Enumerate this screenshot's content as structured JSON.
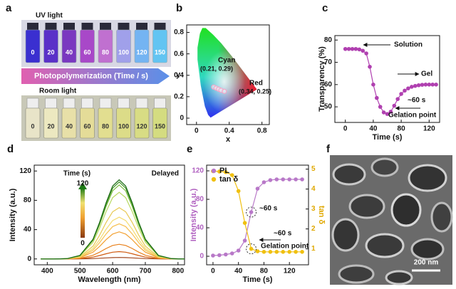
{
  "photo_a": {
    "label": "a",
    "uv_title": "UV light",
    "room_title": "Room light",
    "arrow_text": "Photopolymerization (Time / s)",
    "vial_labels": [
      0,
      20,
      40,
      60,
      80,
      100,
      120,
      150
    ]
  },
  "chart_data": [
    {
      "type": "scatter",
      "label": "b",
      "xlabel": "x",
      "ylabel": "y",
      "xlim": [
        -0.12,
        0.89
      ],
      "ylim": [
        -0.06,
        0.87
      ],
      "xticks": [
        0,
        0.4,
        0.8
      ],
      "yticks": [
        0,
        0.2,
        0.4,
        0.6,
        0.8
      ],
      "x": [
        0.21,
        0.24,
        0.27,
        0.3,
        0.34
      ],
      "values": [
        0.29,
        0.28,
        0.27,
        0.26,
        0.25
      ],
      "color": "#f4a6c8",
      "annotations": [
        "Cyan",
        "(0.21, 0.29)",
        "Red",
        "(0.34, 0.25)"
      ]
    },
    {
      "type": "line",
      "label": "c",
      "xlabel": "Time (s)",
      "ylabel": "Transparency (%)",
      "xlim": [
        -15,
        135
      ],
      "ylim": [
        43,
        82
      ],
      "xticks": [
        0,
        40,
        80,
        120
      ],
      "yticks": [
        50,
        60,
        70,
        80
      ],
      "markers": true,
      "x": [
        0,
        5,
        10,
        15,
        20,
        25,
        30,
        35,
        40,
        45,
        50,
        55,
        60,
        65,
        70,
        75,
        80,
        85,
        90,
        95,
        100,
        105,
        110,
        115,
        120,
        125,
        130
      ],
      "series": [
        {
          "color": "#b040b0",
          "values": [
            76,
            76,
            76,
            76,
            75.8,
            75.2,
            74,
            68,
            60,
            54,
            50,
            47.5,
            46.8,
            47.8,
            50.5,
            53.5,
            55.8,
            57.3,
            58.3,
            59,
            59.4,
            59.7,
            59.9,
            60,
            60,
            60,
            60
          ]
        }
      ],
      "annotations": [
        "Solution",
        "Gel",
        "~60 s",
        "Gelation point"
      ]
    },
    {
      "type": "line",
      "label": "d",
      "title": "Delayed",
      "xlabel": "Wavelength (nm)",
      "ylabel": "Intensity (a.u.)",
      "xlim": [
        360,
        820
      ],
      "ylim": [
        -8,
        128
      ],
      "xticks": [
        400,
        500,
        600,
        700,
        800
      ],
      "yticks": [
        0,
        40,
        80,
        120
      ],
      "markers": false,
      "x": [
        380,
        420,
        460,
        500,
        540,
        560,
        580,
        600,
        620,
        640,
        660,
        680,
        700,
        740,
        780,
        820
      ],
      "series": [
        {
          "color": "#a0461e",
          "values": [
            0,
            0,
            0,
            0.1,
            0.5,
            0.9,
            1.4,
            1.8,
            2,
            1.8,
            1.4,
            0.9,
            0.5,
            0.1,
            0,
            0
          ]
        },
        {
          "color": "#d05a10",
          "values": [
            0,
            0,
            0,
            0.4,
            2.5,
            4.6,
            7.1,
            9.2,
            10,
            9.2,
            7.1,
            4.6,
            2.5,
            0.4,
            0,
            0
          ]
        },
        {
          "color": "#e8801c",
          "values": [
            0,
            0,
            0.1,
            0.9,
            5,
            9.2,
            14.2,
            18.4,
            20,
            18.4,
            14.2,
            9.2,
            5,
            0.9,
            0.1,
            0
          ]
        },
        {
          "color": "#f2a030",
          "values": [
            0,
            0,
            0.1,
            1.6,
            9.3,
            17,
            26.3,
            34,
            37,
            34,
            26.3,
            17,
            9.3,
            1.6,
            0.1,
            0
          ]
        },
        {
          "color": "#f6c050",
          "values": [
            0,
            0,
            0.2,
            2.1,
            12,
            22.1,
            34.1,
            44.2,
            48,
            44.2,
            34.1,
            22.1,
            12,
            2.1,
            0.2,
            0
          ]
        },
        {
          "color": "#f4dc70",
          "values": [
            0,
            0,
            0.2,
            2.5,
            14.3,
            26.2,
            40.5,
            52.4,
            57,
            52.4,
            40.5,
            26.2,
            14.3,
            2.5,
            0.2,
            0
          ]
        },
        {
          "color": "#e8c850",
          "values": [
            0,
            0,
            0.3,
            3.1,
            17.5,
            32.2,
            49.7,
            64.4,
            70,
            64.4,
            49.7,
            32.2,
            17.5,
            3.1,
            0.3,
            0
          ]
        },
        {
          "color": "#b8d860",
          "values": [
            0,
            0,
            0.4,
            4,
            22.8,
            41.9,
            64.6,
            83.7,
            91,
            83.7,
            64.6,
            41.9,
            22.8,
            4,
            0.4,
            0
          ]
        },
        {
          "color": "#7cbc40",
          "values": [
            0,
            0,
            0.4,
            4.4,
            25.3,
            46.5,
            71.7,
            92.9,
            101,
            92.9,
            71.7,
            46.5,
            25.3,
            4.4,
            0.4,
            0
          ]
        },
        {
          "color": "#3f9228",
          "values": [
            0,
            0,
            0.4,
            4.6,
            26.3,
            48.3,
            74.6,
            96.6,
            105,
            96.6,
            74.6,
            48.3,
            26.3,
            4.6,
            0.4,
            0
          ]
        },
        {
          "color": "#1c6a14",
          "values": [
            0,
            0,
            0.4,
            4.8,
            27,
            49.7,
            76.7,
            99.4,
            108,
            99.4,
            76.7,
            49.7,
            27,
            4.8,
            0.4,
            0
          ]
        }
      ],
      "colorbar": {
        "title": "Time (s)",
        "ticks": [
          120,
          0
        ]
      }
    },
    {
      "type": "line",
      "label": "e",
      "xlabel": "Time (s)",
      "ylabel": "Intensity (a.u.)",
      "y2label": "tan δ",
      "xlim": [
        -10,
        150
      ],
      "ylim": [
        -12,
        128
      ],
      "y2lim": [
        0.2,
        5.2
      ],
      "xticks": [
        0,
        40,
        80,
        120
      ],
      "yticks": [
        0,
        40,
        80,
        120
      ],
      "y2ticks": [
        1,
        2,
        3,
        4,
        5
      ],
      "markers": true,
      "x": [
        0,
        10,
        20,
        30,
        40,
        50,
        60,
        70,
        80,
        90,
        100,
        110,
        120,
        130,
        140
      ],
      "series": [
        {
          "name": "PL",
          "color": "#b878c8",
          "values": [
            1,
            1.5,
            2.5,
            4,
            8,
            22,
            62,
            95,
            104,
            107,
            108,
            108,
            108,
            108,
            108
          ]
        },
        {
          "name": "tan δ",
          "color": "#f0c010",
          "axis": "y2",
          "values": [
            4.9,
            4.88,
            4.85,
            4.7,
            3.9,
            2.3,
            1,
            0.88,
            0.85,
            0.85,
            0.85,
            0.85,
            0.85,
            0.85,
            0.85
          ]
        }
      ],
      "annotations": [
        "~60 s",
        "~60 s",
        "Gelation point"
      ]
    }
  ],
  "photo_f": {
    "label": "f",
    "scale_bar": "200 nm"
  }
}
